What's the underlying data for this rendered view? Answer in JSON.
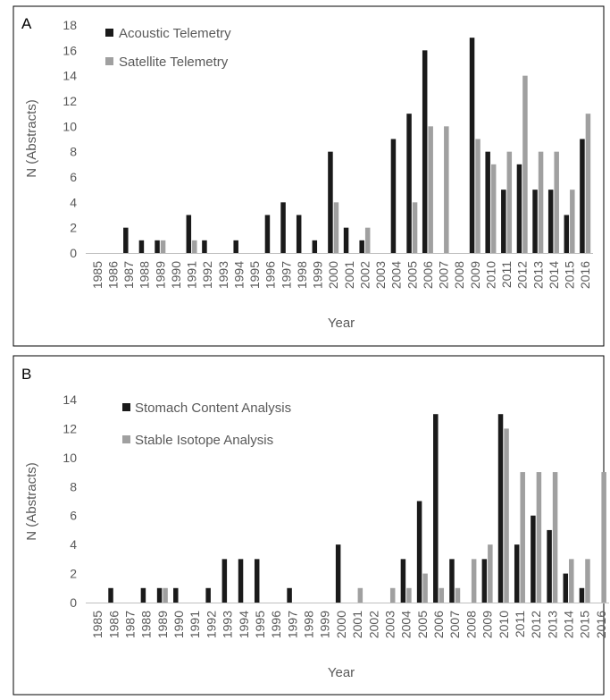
{
  "colors": {
    "series1": "#1a1a1a",
    "series2": "#a0a0a0",
    "axis": "#bfbfbf",
    "text": "#595959",
    "frame": "#000000"
  },
  "chart_data": [
    {
      "type": "bar",
      "panel_label": "A",
      "xlabel": "Year",
      "ylabel": "N (Abstracts)",
      "ylim": [
        0,
        18
      ],
      "yticks": [
        0,
        2,
        4,
        6,
        8,
        10,
        12,
        14,
        16,
        18
      ],
      "grid": false,
      "legend_position": "top-left",
      "categories": [
        "1985",
        "1986",
        "1987",
        "1988",
        "1989",
        "1990",
        "1991",
        "1992",
        "1993",
        "1994",
        "1995",
        "1996",
        "1997",
        "1998",
        "1999",
        "2000",
        "2001",
        "2002",
        "2003",
        "2004",
        "2005",
        "2006",
        "2007",
        "2008",
        "2009",
        "2010",
        "2011",
        "2012",
        "2013",
        "2014",
        "2015",
        "2016"
      ],
      "series": [
        {
          "name": "Acoustic Telemetry",
          "values": [
            0,
            0,
            2,
            1,
            1,
            0,
            3,
            1,
            0,
            1,
            0,
            3,
            4,
            3,
            1,
            8,
            2,
            1,
            0,
            9,
            11,
            16,
            0,
            0,
            17,
            8,
            5,
            7,
            5,
            5,
            3,
            9
          ]
        },
        {
          "name": "Satellite Telemetry",
          "values": [
            0,
            0,
            0,
            0,
            1,
            0,
            1,
            0,
            0,
            0,
            0,
            0,
            0,
            0,
            0,
            4,
            0,
            2,
            0,
            0,
            4,
            10,
            10,
            0,
            9,
            7,
            8,
            14,
            8,
            8,
            5,
            11
          ]
        }
      ]
    },
    {
      "type": "bar",
      "panel_label": "B",
      "xlabel": "Year",
      "ylabel": "N (Abstracts)",
      "ylim": [
        0,
        14
      ],
      "yticks": [
        0,
        2,
        4,
        6,
        8,
        10,
        12,
        14
      ],
      "grid": false,
      "legend_position": "top-left",
      "categories": [
        "1985",
        "1986",
        "1987",
        "1988",
        "1989",
        "1990",
        "1991",
        "1992",
        "1993",
        "1994",
        "1995",
        "1996",
        "1997",
        "1998",
        "1999",
        "2000",
        "2001",
        "2002",
        "2003",
        "2004",
        "2005",
        "2006",
        "2007",
        "2008",
        "2009",
        "2010",
        "2011",
        "2012",
        "2013",
        "2014",
        "2015",
        "2016"
      ],
      "series": [
        {
          "name": "Stomach Content Analysis",
          "values": [
            0,
            1,
            0,
            1,
            1,
            1,
            0,
            1,
            3,
            3,
            3,
            0,
            1,
            0,
            0,
            4,
            0,
            0,
            0,
            3,
            7,
            13,
            3,
            0,
            3,
            13,
            4,
            6,
            5,
            2,
            1,
            0
          ]
        },
        {
          "name": "Stable Isotope Analysis",
          "values": [
            0,
            0,
            0,
            0,
            1,
            0,
            0,
            0,
            0,
            0,
            0,
            0,
            0,
            0,
            0,
            0,
            1,
            0,
            1,
            1,
            2,
            1,
            1,
            3,
            4,
            12,
            9,
            9,
            9,
            3,
            3,
            9
          ]
        }
      ]
    }
  ]
}
